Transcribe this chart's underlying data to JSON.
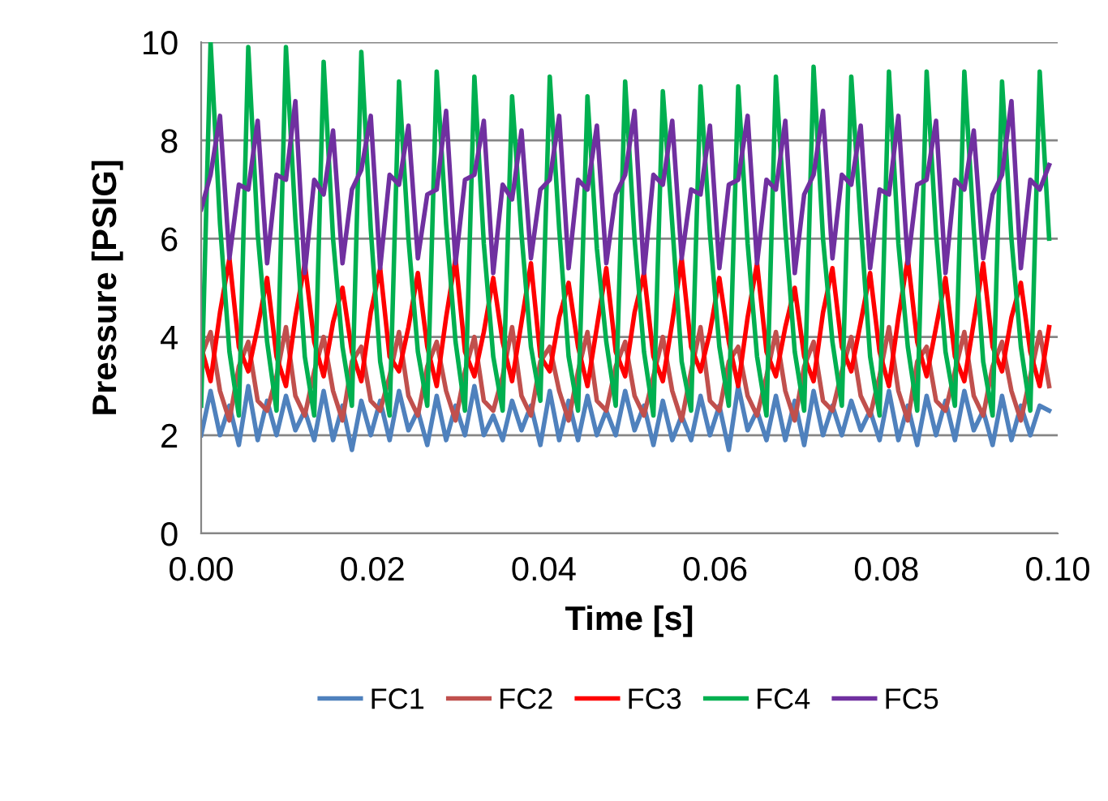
{
  "chart_data": {
    "type": "line",
    "xlabel": "Time [s]",
    "ylabel": "Pressure [PSIG]",
    "x": [
      0,
      0.0011,
      0.0022,
      0.0033,
      0.0044,
      0.0055,
      0.0066,
      0.0077,
      0.0088,
      0.0099,
      0.011,
      0.0121,
      0.0132,
      0.0143,
      0.0154,
      0.0165,
      0.0176,
      0.0187,
      0.0198,
      0.0209,
      0.022,
      0.0231,
      0.0242,
      0.0253,
      0.0264,
      0.0275,
      0.0286,
      0.0297,
      0.0308,
      0.0319,
      0.033,
      0.0341,
      0.0352,
      0.0363,
      0.0374,
      0.0385,
      0.0396,
      0.0407,
      0.0418,
      0.0429,
      0.044,
      0.0451,
      0.0462,
      0.0473,
      0.0484,
      0.0495,
      0.0506,
      0.0517,
      0.0528,
      0.0539,
      0.055,
      0.0561,
      0.0572,
      0.0583,
      0.0594,
      0.0605,
      0.0616,
      0.0627,
      0.0638,
      0.0649,
      0.066,
      0.0671,
      0.0682,
      0.0693,
      0.0704,
      0.0715,
      0.0726,
      0.0737,
      0.0748,
      0.0759,
      0.077,
      0.0781,
      0.0792,
      0.0803,
      0.0814,
      0.0825,
      0.0836,
      0.0847,
      0.0858,
      0.0869,
      0.088,
      0.0891,
      0.0902,
      0.0913,
      0.0924,
      0.0935,
      0.0946,
      0.0957,
      0.0968,
      0.0979,
      0.099
    ],
    "series": [
      {
        "name": "FC1",
        "color": "#4f81bd",
        "values": [
          2.0,
          2.9,
          2.0,
          2.6,
          1.8,
          3.0,
          1.9,
          2.7,
          2.0,
          2.8,
          2.1,
          2.5,
          1.9,
          2.9,
          1.9,
          2.6,
          1.7,
          2.7,
          2.0,
          2.7,
          1.9,
          2.9,
          2.1,
          2.5,
          1.8,
          2.8,
          1.9,
          2.6,
          2.0,
          3.0,
          2.0,
          2.4,
          1.9,
          2.7,
          2.1,
          2.6,
          1.8,
          2.9,
          1.9,
          2.7,
          1.9,
          2.8,
          2.0,
          2.5,
          2.0,
          2.9,
          2.1,
          2.6,
          1.8,
          2.7,
          1.9,
          2.4,
          1.9,
          2.8,
          2.0,
          2.6,
          1.7,
          3.0,
          2.1,
          2.5,
          1.9,
          2.8,
          1.9,
          2.7,
          1.8,
          2.9,
          2.0,
          2.6,
          2.0,
          2.7,
          2.1,
          2.5,
          1.9,
          2.9,
          1.9,
          2.6,
          1.8,
          2.8,
          2.0,
          2.7,
          1.9,
          2.9,
          2.1,
          2.5,
          1.8,
          2.8,
          1.9,
          2.6,
          2.0,
          2.6,
          2.5
        ]
      },
      {
        "name": "FC2",
        "color": "#c0504d",
        "values": [
          3.6,
          4.1,
          2.9,
          2.3,
          3.4,
          3.9,
          2.7,
          2.5,
          3.2,
          4.2,
          2.8,
          2.4,
          3.3,
          4.0,
          2.9,
          2.3,
          3.5,
          3.8,
          2.7,
          2.5,
          3.2,
          4.1,
          2.8,
          2.4,
          3.4,
          3.9,
          2.9,
          2.3,
          3.3,
          4.0,
          2.7,
          2.5,
          3.2,
          4.2,
          2.8,
          2.4,
          3.5,
          3.8,
          2.9,
          2.3,
          3.3,
          4.1,
          2.7,
          2.5,
          3.4,
          3.9,
          2.8,
          2.4,
          3.2,
          4.0,
          2.9,
          2.3,
          3.3,
          4.2,
          2.7,
          2.5,
          3.5,
          3.8,
          2.8,
          2.4,
          3.2,
          4.1,
          2.9,
          2.3,
          3.4,
          3.9,
          2.7,
          2.5,
          3.3,
          4.0,
          2.8,
          2.4,
          3.2,
          4.2,
          2.9,
          2.3,
          3.5,
          3.8,
          2.7,
          2.5,
          3.3,
          4.1,
          2.8,
          2.4,
          3.4,
          3.9,
          2.9,
          2.3,
          3.2,
          4.1,
          3.0
        ]
      },
      {
        "name": "FC3",
        "color": "#ff0000",
        "values": [
          3.8,
          3.1,
          4.5,
          5.6,
          3.8,
          3.3,
          4.2,
          5.2,
          3.6,
          3.0,
          4.4,
          5.5,
          3.9,
          3.2,
          4.3,
          5.0,
          3.7,
          3.1,
          4.5,
          5.4,
          3.6,
          3.3,
          4.2,
          5.3,
          3.8,
          3.0,
          4.4,
          5.6,
          3.7,
          3.2,
          4.1,
          5.2,
          3.9,
          3.1,
          4.3,
          5.5,
          3.6,
          3.3,
          4.4,
          5.1,
          3.8,
          3.0,
          4.2,
          5.4,
          3.7,
          3.2,
          4.5,
          5.3,
          3.6,
          3.1,
          4.3,
          5.6,
          3.8,
          3.3,
          4.1,
          5.2,
          3.9,
          3.0,
          4.4,
          5.5,
          3.7,
          3.2,
          4.2,
          5.0,
          3.6,
          3.1,
          4.5,
          5.4,
          3.8,
          3.3,
          4.3,
          5.3,
          3.7,
          3.0,
          4.4,
          5.6,
          3.9,
          3.2,
          4.2,
          5.2,
          3.6,
          3.1,
          4.3,
          5.5,
          3.8,
          3.3,
          4.4,
          5.1,
          3.7,
          3.0,
          4.2
        ]
      },
      {
        "name": "FC4",
        "color": "#00b050",
        "values": [
          2.6,
          10.0,
          6.3,
          3.7,
          2.4,
          9.9,
          6.1,
          3.9,
          2.5,
          9.9,
          6.4,
          3.6,
          2.4,
          9.6,
          6.0,
          3.8,
          2.6,
          9.8,
          6.2,
          3.5,
          2.4,
          9.2,
          6.0,
          3.7,
          2.6,
          9.4,
          6.3,
          3.9,
          2.5,
          9.3,
          5.9,
          3.6,
          2.5,
          8.9,
          6.1,
          3.8,
          2.7,
          9.3,
          6.2,
          3.6,
          2.5,
          8.9,
          5.8,
          3.9,
          2.6,
          9.2,
          6.0,
          3.7,
          2.4,
          9.0,
          6.3,
          3.5,
          2.5,
          9.1,
          6.1,
          3.8,
          2.6,
          9.1,
          5.9,
          3.6,
          2.4,
          9.3,
          6.2,
          3.7,
          2.5,
          9.5,
          6.0,
          3.9,
          2.6,
          9.3,
          6.3,
          3.6,
          2.4,
          9.4,
          5.9,
          3.8,
          2.5,
          9.4,
          6.1,
          3.7,
          2.6,
          9.4,
          6.2,
          3.5,
          2.4,
          9.2,
          6.0,
          3.8,
          2.5,
          9.4,
          6.0
        ]
      },
      {
        "name": "FC5",
        "color": "#7030a0",
        "values": [
          6.6,
          7.3,
          8.5,
          5.6,
          7.1,
          7.0,
          8.4,
          5.5,
          7.3,
          7.2,
          8.8,
          5.3,
          7.2,
          6.9,
          8.2,
          5.5,
          7.0,
          7.4,
          8.5,
          5.4,
          7.3,
          7.1,
          8.3,
          5.6,
          6.9,
          7.0,
          8.6,
          5.5,
          7.2,
          7.3,
          8.4,
          5.3,
          7.1,
          6.8,
          8.2,
          5.6,
          7.0,
          7.2,
          8.5,
          5.4,
          7.2,
          7.0,
          8.3,
          5.5,
          6.9,
          7.3,
          8.6,
          5.3,
          7.3,
          7.1,
          8.4,
          5.6,
          7.0,
          6.9,
          8.3,
          5.4,
          7.1,
          7.2,
          8.5,
          5.5,
          7.2,
          7.0,
          8.4,
          5.3,
          6.9,
          7.3,
          8.6,
          5.6,
          7.3,
          7.1,
          8.3,
          5.4,
          7.0,
          6.9,
          8.5,
          5.5,
          7.1,
          7.2,
          8.4,
          5.3,
          7.2,
          7.0,
          8.2,
          5.6,
          6.9,
          7.3,
          8.8,
          5.4,
          7.2,
          7.0,
          7.5
        ]
      }
    ],
    "xlim": [
      0,
      0.1
    ],
    "xticks": [
      {
        "value": 0,
        "label": "0.00"
      },
      {
        "value": 0.02,
        "label": "0.02"
      },
      {
        "value": 0.04,
        "label": "0.04"
      },
      {
        "value": 0.06,
        "label": "0.06"
      },
      {
        "value": 0.08,
        "label": "0.08"
      },
      {
        "value": 0.1,
        "label": "0.10"
      }
    ],
    "ylim": [
      0,
      10
    ],
    "yticks": [
      0,
      2,
      4,
      6,
      8,
      10
    ],
    "grid": "y",
    "legend": "bottom",
    "marker": "none",
    "line_style": "solid"
  }
}
